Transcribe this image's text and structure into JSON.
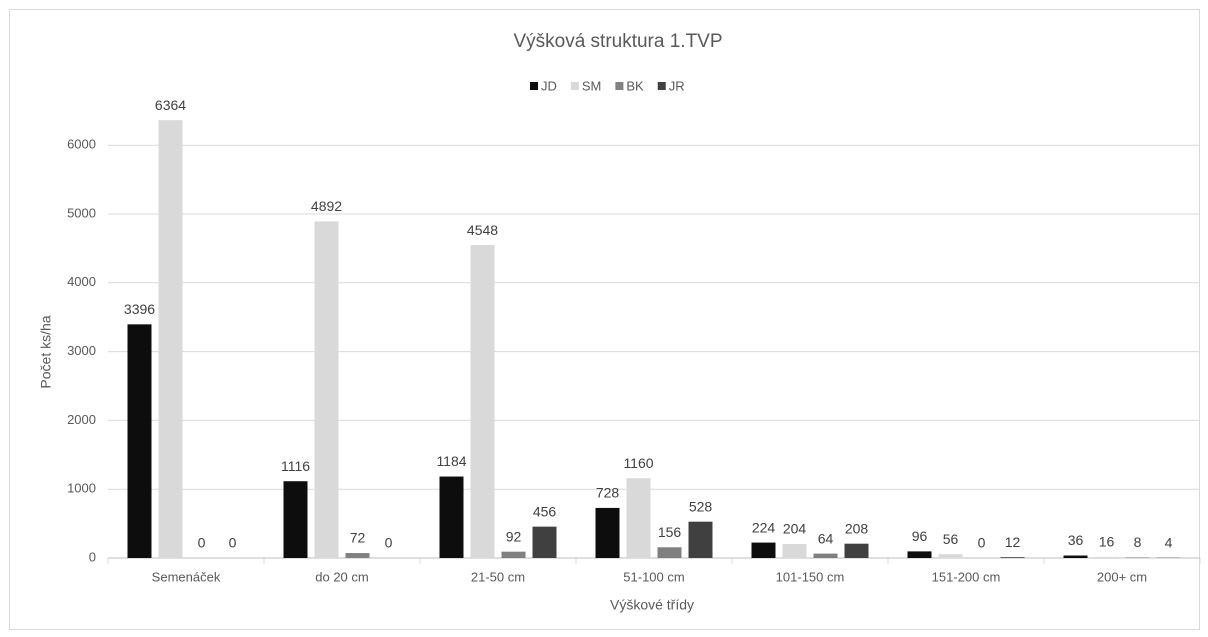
{
  "chart_data": {
    "type": "bar",
    "title": "Výšková struktura 1.TVP",
    "x_label": "Výškové třídy",
    "y_label": "Počet ks/ha",
    "categories": [
      "Semenáček",
      "do 20 cm",
      "21-50 cm",
      "51-100 cm",
      "101-150 cm",
      "151-200 cm",
      "200+ cm"
    ],
    "series": [
      {
        "name": "JD",
        "color": "#0d0d0d",
        "values": [
          3396,
          1116,
          1184,
          728,
          224,
          96,
          36
        ]
      },
      {
        "name": "SM",
        "color": "#d9d9d9",
        "values": [
          6364,
          4892,
          4548,
          1160,
          204,
          56,
          16
        ]
      },
      {
        "name": "BK",
        "color": "#808080",
        "values": [
          0,
          72,
          92,
          156,
          64,
          0,
          8
        ]
      },
      {
        "name": "JR",
        "color": "#404040",
        "values": [
          0,
          0,
          456,
          528,
          208,
          12,
          4
        ]
      }
    ],
    "ylim": [
      0,
      7000
    ],
    "yticks": [
      0,
      1000,
      2000,
      3000,
      4000,
      5000,
      6000
    ],
    "grid": true,
    "legend": "top"
  }
}
